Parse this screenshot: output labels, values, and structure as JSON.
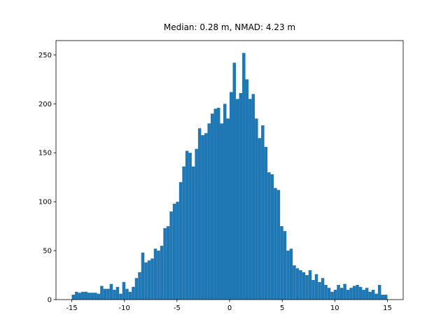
{
  "chart_data": {
    "type": "histogram",
    "title": "Median: 0.28 m, NMAD: 4.23 m",
    "bins": [
      -15,
      -14.7,
      -14.4,
      -14.1,
      -13.8,
      -13.5,
      -13.2,
      -12.9,
      -12.6,
      -12.3,
      -12,
      -11.7,
      -11.4,
      -11.1,
      -10.8,
      -10.5,
      -10.2,
      -9.9,
      -9.6,
      -9.3,
      -9,
      -8.7,
      -8.4,
      -8.1,
      -7.8,
      -7.5,
      -7.2,
      -6.9,
      -6.6,
      -6.3,
      -6,
      -5.7,
      -5.4,
      -5.1,
      -4.8,
      -4.5,
      -4.2,
      -3.9,
      -3.6,
      -3.3,
      -3,
      -2.7,
      -2.4,
      -2.1,
      -1.8,
      -1.5,
      -1.2,
      -0.9,
      -0.6,
      -0.3,
      0,
      0.3,
      0.6,
      0.9,
      1.2,
      1.5,
      1.8,
      2.1,
      2.4,
      2.7,
      3,
      3.3,
      3.6,
      3.9,
      4.2,
      4.5,
      4.8,
      5.1,
      5.4,
      5.7,
      6,
      6.3,
      6.6,
      6.9,
      7.2,
      7.5,
      7.8,
      8.1,
      8.4,
      8.7,
      9,
      9.3,
      9.6,
      9.9,
      10.2,
      10.5,
      10.8,
      11.1,
      11.4,
      11.7,
      12,
      12.3,
      12.6,
      12.9,
      13.2,
      13.5,
      13.8,
      14.1,
      14.4,
      14.7,
      15
    ],
    "values": [
      5,
      8,
      7,
      8,
      8,
      7,
      7,
      7,
      6,
      14,
      11,
      11,
      16,
      10,
      13,
      6,
      18,
      11,
      8,
      13,
      22,
      28,
      48,
      38,
      40,
      42,
      52,
      50,
      55,
      73,
      75,
      90,
      98,
      100,
      120,
      136,
      152,
      150,
      136,
      154,
      175,
      168,
      170,
      180,
      190,
      195,
      196,
      180,
      200,
      185,
      212,
      242,
      205,
      211,
      252,
      225,
      205,
      210,
      185,
      165,
      178,
      156,
      130,
      128,
      114,
      112,
      75,
      70,
      50,
      52,
      35,
      32,
      30,
      28,
      25,
      30,
      20,
      26,
      18,
      22,
      15,
      12,
      8,
      10,
      15,
      12,
      16,
      10,
      12,
      14,
      15,
      13,
      10,
      12,
      8,
      10,
      6,
      15,
      5,
      5
    ],
    "color": "#1f77b4",
    "xlim": [
      -16.5,
      16.5
    ],
    "ylim": [
      0,
      264.6
    ],
    "xticks": [
      -15,
      -10,
      -5,
      0,
      5,
      10,
      15
    ],
    "yticks": [
      0,
      50,
      100,
      150,
      200,
      250
    ],
    "grid": false
  }
}
